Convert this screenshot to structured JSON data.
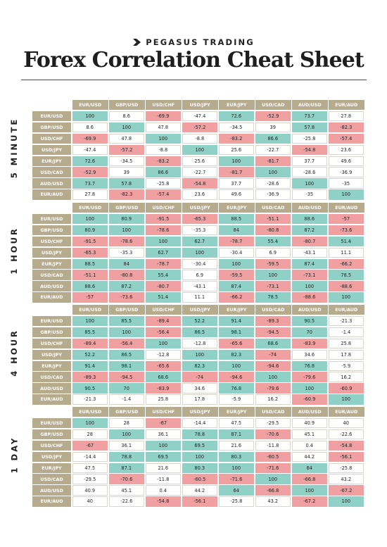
{
  "brand": {
    "name": "PEGASUS TRADING",
    "icon": "pegasus-logo-icon"
  },
  "title": "Forex Correlation Cheat Sheet",
  "colors": {
    "header_bg": "#b7ab8e",
    "header_text": "#ffffff",
    "positive": "#8fd1c6",
    "negative": "#f0a0a0",
    "neutral": "#ffffff"
  },
  "pairs": [
    "EUR/USD",
    "GBP/USD",
    "USD/CHF",
    "USD/JPY",
    "EUR/JPY",
    "USD/CAD",
    "AUD/USD",
    "EUR/AUD"
  ],
  "sections": [
    {
      "label": "5 MINUTE",
      "matrix": [
        [
          "100",
          "8.6",
          "-69.9",
          "-47.4",
          "72.6",
          "-52.9",
          "73.7",
          "27.8"
        ],
        [
          "8.6",
          "100",
          "47.8",
          "-57.2",
          "-34.5",
          "39",
          "57.8",
          "-82.3"
        ],
        [
          "-69.9",
          "47.8",
          "100",
          "-8.8",
          "-83.2",
          "86.6",
          "-25.8",
          "-57.4"
        ],
        [
          "-47.4",
          "-57.2",
          "-8.8",
          "100",
          "25.6",
          "-22.7",
          "-54.8",
          "23.6"
        ],
        [
          "72.6",
          "-34.5",
          "-83.2",
          "25.6",
          "100",
          "-81.7",
          "37.7",
          "49.6"
        ],
        [
          "-52.9",
          "39",
          "86.6",
          "-22.7",
          "-81.7",
          "100",
          "-28.6",
          "-36.9"
        ],
        [
          "73.7",
          "57.8",
          "-25.8",
          "-54.8",
          "37.7",
          "-28.6",
          "100",
          "-35"
        ],
        [
          "27.8",
          "-82.3",
          "-57.4",
          "23.6",
          "49.6",
          "-36.9",
          "-35",
          "100"
        ]
      ],
      "tones": [
        [
          "pos",
          "neu",
          "neg",
          "neu",
          "pos",
          "neg",
          "pos",
          "neu"
        ],
        [
          "neu",
          "pos",
          "neu",
          "neg",
          "neu",
          "neu",
          "pos",
          "neg"
        ],
        [
          "neg",
          "neu",
          "pos",
          "neu",
          "neg",
          "pos",
          "neu",
          "neg"
        ],
        [
          "neu",
          "neg",
          "neu",
          "pos",
          "neu",
          "neu",
          "neg",
          "neu"
        ],
        [
          "pos",
          "neu",
          "neg",
          "neu",
          "pos",
          "neg",
          "neu",
          "neu"
        ],
        [
          "neg",
          "neu",
          "pos",
          "neu",
          "neg",
          "pos",
          "neu",
          "neu"
        ],
        [
          "pos",
          "pos",
          "neu",
          "neg",
          "neu",
          "neu",
          "pos",
          "neu"
        ],
        [
          "neu",
          "neg",
          "neg",
          "neu",
          "neu",
          "neu",
          "neu",
          "pos"
        ]
      ]
    },
    {
      "label": "1 HOUR",
      "matrix": [
        [
          "100",
          "80.9",
          "-91.5",
          "-65.3",
          "88.5",
          "-51.1",
          "88.6",
          "-57"
        ],
        [
          "80.9",
          "100",
          "-78.6",
          "-35.3",
          "84",
          "-80.8",
          "87.2",
          "-73.6"
        ],
        [
          "-91.5",
          "-78.6",
          "100",
          "62.7",
          "-78.7",
          "55.4",
          "-80.7",
          "51.4"
        ],
        [
          "-65.3",
          "-35.3",
          "62.7",
          "100",
          "-30.4",
          "6.9",
          "-43.1",
          "11.1"
        ],
        [
          "88.5",
          "84",
          "-78.7",
          "-30.4",
          "100",
          "-59.5",
          "87.4",
          "-66.2"
        ],
        [
          "-51.1",
          "-80.8",
          "55.4",
          "6.9",
          "-59.5",
          "100",
          "-73.1",
          "78.5"
        ],
        [
          "88.6",
          "87.2",
          "-80.7",
          "-43.1",
          "87.4",
          "-73.1",
          "100",
          "-88.6"
        ],
        [
          "-57",
          "-73.6",
          "51.4",
          "11.1",
          "-66.2",
          "78.5",
          "-88.6",
          "100"
        ]
      ],
      "tones": [
        [
          "pos",
          "pos",
          "neg",
          "neg",
          "pos",
          "neg",
          "pos",
          "neg"
        ],
        [
          "pos",
          "pos",
          "neg",
          "neu",
          "pos",
          "neg",
          "pos",
          "neg"
        ],
        [
          "neg",
          "neg",
          "pos",
          "pos",
          "neg",
          "pos",
          "neg",
          "pos"
        ],
        [
          "neg",
          "neu",
          "pos",
          "pos",
          "neu",
          "neu",
          "neu",
          "neu"
        ],
        [
          "pos",
          "pos",
          "neg",
          "neu",
          "pos",
          "neg",
          "pos",
          "neg"
        ],
        [
          "neg",
          "neg",
          "pos",
          "neu",
          "neg",
          "pos",
          "neg",
          "pos"
        ],
        [
          "pos",
          "pos",
          "neg",
          "neu",
          "pos",
          "neg",
          "pos",
          "neg"
        ],
        [
          "neg",
          "neg",
          "pos",
          "neu",
          "neg",
          "pos",
          "neg",
          "pos"
        ]
      ]
    },
    {
      "label": "4 HOUR",
      "matrix": [
        [
          "100",
          "85.5",
          "-89.4",
          "52.2",
          "91.4",
          "-89.3",
          "90.5",
          "-21.3"
        ],
        [
          "85.5",
          "100",
          "-56.4",
          "86.5",
          "98.1",
          "-94.5",
          "70",
          "-1.4"
        ],
        [
          "-89.4",
          "-56.4",
          "100",
          "-12.8",
          "-65.6",
          "68.6",
          "-83.9",
          "25.8"
        ],
        [
          "52.2",
          "86.5",
          "-12.8",
          "100",
          "82.3",
          "-74",
          "34.6",
          "17.8"
        ],
        [
          "91.4",
          "98.1",
          "-65.6",
          "82.3",
          "100",
          "-94.6",
          "76.8",
          "-5.9"
        ],
        [
          "-89.3",
          "-94.5",
          "68.6",
          "-74",
          "-94.6",
          "100",
          "-79.6",
          "16.2"
        ],
        [
          "90.5",
          "70",
          "-83.9",
          "34.6",
          "76.8",
          "-79.6",
          "100",
          "-60.9"
        ],
        [
          "-21.3",
          "-1.4",
          "25.8",
          "17.8",
          "-5.9",
          "16.2",
          "-60.9",
          "100"
        ]
      ],
      "tones": [
        [
          "pos",
          "pos",
          "neg",
          "pos",
          "pos",
          "neg",
          "pos",
          "neu"
        ],
        [
          "pos",
          "pos",
          "neg",
          "pos",
          "pos",
          "neg",
          "pos",
          "neu"
        ],
        [
          "neg",
          "neg",
          "pos",
          "neu",
          "neg",
          "pos",
          "neg",
          "neu"
        ],
        [
          "pos",
          "pos",
          "neu",
          "pos",
          "pos",
          "neg",
          "neu",
          "neu"
        ],
        [
          "pos",
          "pos",
          "neg",
          "pos",
          "pos",
          "neg",
          "pos",
          "neu"
        ],
        [
          "neg",
          "neg",
          "pos",
          "neg",
          "neg",
          "pos",
          "neg",
          "neu"
        ],
        [
          "pos",
          "pos",
          "neg",
          "neu",
          "pos",
          "neg",
          "pos",
          "neg"
        ],
        [
          "neu",
          "neu",
          "neu",
          "neu",
          "neu",
          "neu",
          "neg",
          "pos"
        ]
      ]
    },
    {
      "label": "1 DAY",
      "matrix": [
        [
          "100",
          "28",
          "-67",
          "-14.4",
          "47.5",
          "-29.5",
          "40.9",
          "40"
        ],
        [
          "28",
          "100",
          "36.1",
          "78.8",
          "87.1",
          "-70.6",
          "45.1",
          "-22.6"
        ],
        [
          "-67",
          "36.1",
          "100",
          "69.5",
          "21.6",
          "-11.8",
          "0.4",
          "-54.8"
        ],
        [
          "-14.4",
          "78.8",
          "69.5",
          "100",
          "80.3",
          "-60.5",
          "44.2",
          "-56.1"
        ],
        [
          "47.5",
          "87.1",
          "21.6",
          "80.3",
          "100",
          "-71.6",
          "64",
          "-25.8"
        ],
        [
          "-29.5",
          "-70.6",
          "-11.8",
          "-60.5",
          "-71.6",
          "100",
          "-66.8",
          "43.2"
        ],
        [
          "40.9",
          "45.1",
          "0.4",
          "44.2",
          "64",
          "-66.8",
          "100",
          "-67.2"
        ],
        [
          "40",
          "-22.6",
          "-54.8",
          "-56.1",
          "-25.8",
          "43.2",
          "-67.2",
          "100"
        ]
      ],
      "tones": [
        [
          "pos",
          "neu",
          "neg",
          "neu",
          "neu",
          "neu",
          "neu",
          "neu"
        ],
        [
          "neu",
          "pos",
          "neu",
          "pos",
          "pos",
          "neg",
          "neu",
          "neu"
        ],
        [
          "neg",
          "neu",
          "pos",
          "pos",
          "neu",
          "neu",
          "neu",
          "neg"
        ],
        [
          "neu",
          "pos",
          "pos",
          "pos",
          "pos",
          "neg",
          "neu",
          "neg"
        ],
        [
          "neu",
          "pos",
          "neu",
          "pos",
          "pos",
          "neg",
          "pos",
          "neu"
        ],
        [
          "neu",
          "neg",
          "neu",
          "neg",
          "neg",
          "pos",
          "neg",
          "neu"
        ],
        [
          "neu",
          "neu",
          "neu",
          "neu",
          "pos",
          "neg",
          "pos",
          "neg"
        ],
        [
          "neu",
          "neu",
          "neg",
          "neg",
          "neu",
          "neu",
          "neg",
          "pos"
        ]
      ]
    }
  ]
}
